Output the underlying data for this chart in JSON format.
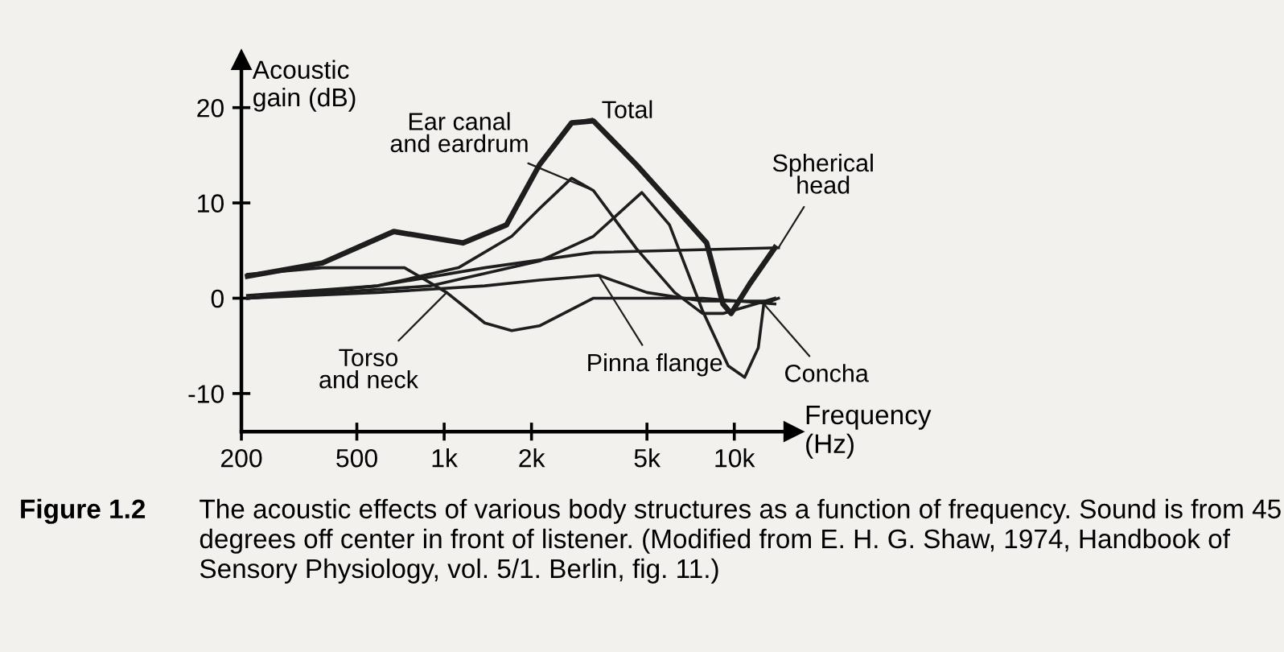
{
  "chart_data": {
    "type": "line",
    "xlabel": "Frequency\n(Hz)",
    "ylabel": "Acoustic\ngain (dB)",
    "log": "x",
    "xlim": [
      200,
      16000
    ],
    "xticks": [
      200,
      500,
      {
        "value": 1000,
        "label": "1k"
      },
      {
        "value": 2000,
        "label": "2k"
      },
      {
        "value": 5000,
        "label": "5k"
      },
      {
        "value": 10000,
        "label": "10k"
      }
    ],
    "ylim": [
      -14,
      25
    ],
    "yticks": [
      -10,
      0,
      10,
      20
    ],
    "grid": false,
    "legend": "bottom",
    "marker": "none",
    "line_style": "solid",
    "series": [
      {
        "name": "Total",
        "color": "#1e1e1e",
        "x": [
          210,
          380,
          670,
          1160,
          1640,
          2130,
          2750,
          3270,
          4600,
          6470,
          8030,
          9140,
          9750,
          11300,
          13800
        ],
        "values": [
          2.3,
          3.7,
          7,
          5.8,
          7.7,
          14,
          18.4,
          18.6,
          14,
          9,
          5.8,
          -0.6,
          -1.6,
          1.5,
          5.3
        ]
      },
      {
        "name": "Ear canal and eardrum",
        "color": "#1e1e1e",
        "x": [
          210,
          590,
          1120,
          1710,
          2130,
          2750,
          3270,
          4600,
          6230,
          7770,
          9140,
          13800
        ],
        "values": [
          0,
          1.3,
          3.2,
          6.5,
          9.4,
          12.6,
          11.3,
          5.2,
          0.6,
          -1.6,
          -1.6,
          0
        ]
      },
      {
        "name": "Spherical head",
        "color": "#1e1e1e",
        "x": [
          210,
          590,
          1380,
          3270,
          14200
        ],
        "values": [
          0.3,
          1.3,
          3.2,
          4.8,
          5.3
        ]
      },
      {
        "name": "Concha",
        "color": "#1e1e1e",
        "x": [
          210,
          900,
          2130,
          3270,
          4800,
          5980,
          7770,
          9530,
          10860,
          12100,
          12640,
          14200
        ],
        "values": [
          0,
          1.3,
          3.9,
          6.5,
          11.1,
          7.7,
          -1.3,
          -7.1,
          -8.3,
          -5.2,
          -0.6,
          0
        ]
      },
      {
        "name": "Torso and neck",
        "color": "#1e1e1e",
        "x": [
          210,
          380,
          730,
          1020,
          1380,
          1710,
          2130,
          3270,
          7770,
          13800
        ],
        "values": [
          2.5,
          3.2,
          3.2,
          0.6,
          -2.6,
          -3.4,
          -2.9,
          0,
          0,
          -0.6
        ]
      },
      {
        "name": "Pinna flange",
        "color": "#1e1e1e",
        "x": [
          210,
          590,
          1380,
          2130,
          3410,
          5000,
          7770,
          13400
        ],
        "values": [
          0,
          0.6,
          1.3,
          1.9,
          2.4,
          0.6,
          -0.3,
          -0.3
        ]
      }
    ],
    "annotations": [
      "Figure 1.2",
      "The acoustic effects of various body structures as a function of frequency. Sound is from 45 degrees off center in front of listener. (Modified from E. H. G. Shaw, 1974, Handbook of Sensory Physiology, vol. 5/1. Berlin, fig. 11.)"
    ]
  }
}
